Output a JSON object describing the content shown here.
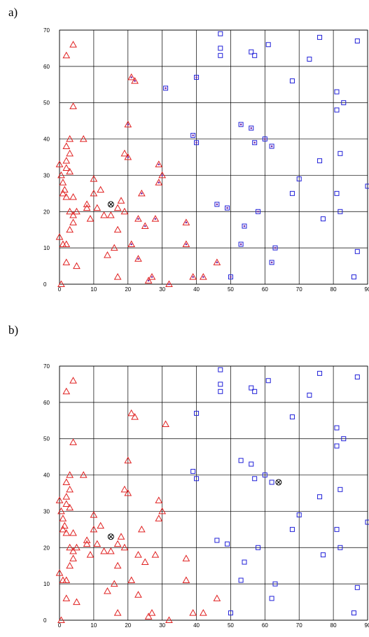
{
  "panels": [
    {
      "label": "a)"
    },
    {
      "label": "b)"
    }
  ],
  "colors": {
    "triangle": "#e02020",
    "square": "#2020d8",
    "grid": "#000000",
    "center": "#000000",
    "overlay_dot": "#7a2aa8"
  },
  "chart_data": [
    {
      "type": "scatter",
      "title": "",
      "xlabel": "",
      "ylabel": "",
      "xlim": [
        0,
        90
      ],
      "ylim": [
        0,
        70
      ],
      "xticks": [
        "0",
        "10",
        "20",
        "30",
        "40",
        "50",
        "60",
        "70",
        "80",
        "90"
      ],
      "yticks": [
        "0",
        "10",
        "20",
        "30",
        "40",
        "50",
        "60",
        "70"
      ],
      "grid": true,
      "series": [
        {
          "marker": "triangle",
          "color": "#e02020",
          "points": [
            [
              0.5,
              0
            ],
            [
              0,
              13
            ],
            [
              1,
              11
            ],
            [
              2,
              11
            ],
            [
              2,
              6
            ],
            [
              3,
              15
            ],
            [
              4,
              17
            ],
            [
              5,
              5
            ],
            [
              4,
              19
            ],
            [
              3,
              20
            ],
            [
              5,
              20
            ],
            [
              0,
              33
            ],
            [
              0.5,
              30
            ],
            [
              1,
              28
            ],
            [
              1.5,
              26
            ],
            [
              1,
              25
            ],
            [
              2,
              24
            ],
            [
              2,
              32
            ],
            [
              2,
              34
            ],
            [
              2,
              38
            ],
            [
              3,
              36
            ],
            [
              3,
              40
            ],
            [
              3,
              31
            ],
            [
              4,
              24
            ],
            [
              7,
              40
            ],
            [
              8,
              22
            ],
            [
              8,
              21
            ],
            [
              9,
              18
            ],
            [
              10,
              29
            ],
            [
              10,
              25
            ],
            [
              11,
              21
            ],
            [
              12,
              26
            ],
            [
              13,
              19
            ],
            [
              14,
              8
            ],
            [
              15,
              19
            ],
            [
              16,
              10
            ],
            [
              17,
              15
            ],
            [
              17,
              2
            ],
            [
              17,
              21
            ],
            [
              18,
              23
            ],
            [
              19,
              20
            ],
            [
              19,
              36
            ],
            [
              20,
              35
            ],
            [
              20,
              44
            ],
            [
              21,
              11
            ],
            [
              21,
              57
            ],
            [
              22,
              56
            ],
            [
              23,
              7
            ],
            [
              23,
              18
            ],
            [
              24,
              25
            ],
            [
              25,
              16
            ],
            [
              26,
              1
            ],
            [
              27,
              2
            ],
            [
              28,
              18
            ],
            [
              29,
              28
            ],
            [
              29,
              33
            ],
            [
              30,
              30
            ],
            [
              32,
              0
            ],
            [
              37,
              11
            ],
            [
              37,
              17
            ],
            [
              39,
              2
            ],
            [
              42,
              2
            ],
            [
              46,
              6
            ],
            [
              2,
              63
            ],
            [
              4,
              66
            ],
            [
              4,
              49
            ]
          ]
        },
        {
          "marker": "square",
          "color": "#2020d8",
          "points": [
            [
              31,
              54
            ],
            [
              39,
              41
            ],
            [
              40,
              39
            ],
            [
              40,
              57
            ],
            [
              46,
              22
            ],
            [
              47,
              63
            ],
            [
              47,
              65
            ],
            [
              47,
              69
            ],
            [
              49,
              21
            ],
            [
              50,
              2
            ],
            [
              53,
              11
            ],
            [
              53,
              44
            ],
            [
              54,
              16
            ],
            [
              56,
              43
            ],
            [
              56,
              64
            ],
            [
              57,
              39
            ],
            [
              57,
              63
            ],
            [
              58,
              20
            ],
            [
              60,
              40
            ],
            [
              61,
              66
            ],
            [
              62,
              6
            ],
            [
              62,
              38
            ],
            [
              63,
              10
            ],
            [
              68,
              25
            ],
            [
              68,
              56
            ],
            [
              70,
              29
            ],
            [
              73,
              62
            ],
            [
              76,
              34
            ],
            [
              76,
              68
            ],
            [
              77,
              18
            ],
            [
              81,
              25
            ],
            [
              81,
              48
            ],
            [
              81,
              53
            ],
            [
              82,
              20
            ],
            [
              82,
              36
            ],
            [
              83,
              50
            ],
            [
              86,
              2
            ],
            [
              87,
              9
            ],
            [
              87,
              67
            ],
            [
              90,
              27
            ]
          ]
        }
      ],
      "center": {
        "x": 15,
        "y": 22
      }
    },
    {
      "type": "scatter",
      "title": "",
      "xlabel": "",
      "ylabel": "",
      "xlim": [
        0,
        90
      ],
      "ylim": [
        0,
        70
      ],
      "xticks": [
        "0",
        "10",
        "20",
        "30",
        "40",
        "50",
        "60",
        "70",
        "80",
        "90"
      ],
      "yticks": [
        "0",
        "10",
        "20",
        "30",
        "40",
        "50",
        "60",
        "70"
      ],
      "grid": true,
      "series": [
        {
          "marker": "triangle",
          "color": "#e02020",
          "points": [
            [
              0.5,
              0
            ],
            [
              0,
              13
            ],
            [
              1,
              11
            ],
            [
              2,
              11
            ],
            [
              2,
              6
            ],
            [
              3,
              15
            ],
            [
              4,
              17
            ],
            [
              5,
              5
            ],
            [
              4,
              19
            ],
            [
              3,
              20
            ],
            [
              5,
              20
            ],
            [
              0,
              33
            ],
            [
              0.5,
              30
            ],
            [
              1,
              28
            ],
            [
              1.5,
              26
            ],
            [
              1,
              25
            ],
            [
              2,
              24
            ],
            [
              2,
              32
            ],
            [
              2,
              34
            ],
            [
              2,
              38
            ],
            [
              3,
              36
            ],
            [
              3,
              40
            ],
            [
              3,
              31
            ],
            [
              4,
              24
            ],
            [
              7,
              40
            ],
            [
              8,
              22
            ],
            [
              8,
              21
            ],
            [
              9,
              18
            ],
            [
              10,
              29
            ],
            [
              10,
              25
            ],
            [
              11,
              21
            ],
            [
              12,
              26
            ],
            [
              13,
              19
            ],
            [
              14,
              8
            ],
            [
              15,
              19
            ],
            [
              16,
              10
            ],
            [
              17,
              15
            ],
            [
              17,
              2
            ],
            [
              17,
              21
            ],
            [
              18,
              23
            ],
            [
              19,
              20
            ],
            [
              19,
              36
            ],
            [
              20,
              35
            ],
            [
              20,
              44
            ],
            [
              21,
              11
            ],
            [
              21,
              57
            ],
            [
              22,
              56
            ],
            [
              23,
              7
            ],
            [
              23,
              18
            ],
            [
              24,
              25
            ],
            [
              25,
              16
            ],
            [
              26,
              1
            ],
            [
              27,
              2
            ],
            [
              28,
              18
            ],
            [
              29,
              28
            ],
            [
              29,
              33
            ],
            [
              30,
              30
            ],
            [
              32,
              0
            ],
            [
              37,
              11
            ],
            [
              37,
              17
            ],
            [
              39,
              2
            ],
            [
              42,
              2
            ],
            [
              46,
              6
            ],
            [
              2,
              63
            ],
            [
              4,
              66
            ],
            [
              4,
              49
            ],
            [
              31,
              54
            ]
          ]
        },
        {
          "marker": "square",
          "color": "#2020d8",
          "points": [
            [
              39,
              41
            ],
            [
              40,
              39
            ],
            [
              40,
              57
            ],
            [
              46,
              22
            ],
            [
              47,
              63
            ],
            [
              47,
              65
            ],
            [
              47,
              69
            ],
            [
              49,
              21
            ],
            [
              50,
              2
            ],
            [
              53,
              11
            ],
            [
              53,
              44
            ],
            [
              54,
              16
            ],
            [
              56,
              43
            ],
            [
              56,
              64
            ],
            [
              57,
              39
            ],
            [
              57,
              63
            ],
            [
              58,
              20
            ],
            [
              60,
              40
            ],
            [
              61,
              66
            ],
            [
              62,
              6
            ],
            [
              62,
              38
            ],
            [
              63,
              10
            ],
            [
              68,
              25
            ],
            [
              68,
              56
            ],
            [
              70,
              29
            ],
            [
              73,
              62
            ],
            [
              76,
              34
            ],
            [
              76,
              68
            ],
            [
              77,
              18
            ],
            [
              81,
              25
            ],
            [
              81,
              48
            ],
            [
              81,
              53
            ],
            [
              82,
              20
            ],
            [
              82,
              36
            ],
            [
              83,
              50
            ],
            [
              86,
              2
            ],
            [
              87,
              9
            ],
            [
              87,
              67
            ],
            [
              90,
              27
            ]
          ]
        }
      ],
      "center": {
        "x": 15,
        "y": 23
      },
      "center2": {
        "x": 64,
        "y": 38
      }
    }
  ]
}
